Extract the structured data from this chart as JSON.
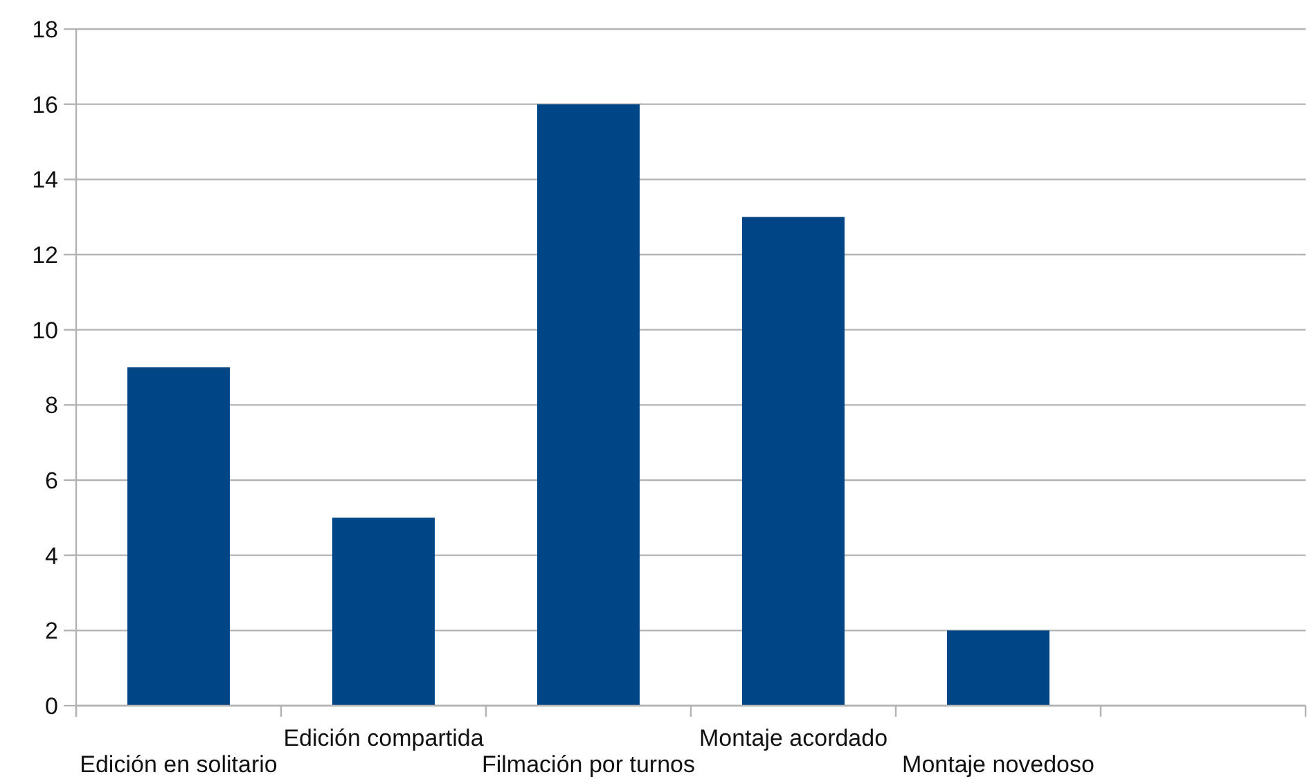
{
  "chart_data": {
    "type": "bar",
    "categories": [
      "Edición en solitario",
      "Edición compartida",
      "Filmación por turnos",
      "Montaje acordado",
      "Montaje novedoso",
      null
    ],
    "values": [
      9,
      5,
      16,
      13,
      2,
      null
    ],
    "color": "#004586",
    "ylim": [
      0,
      18
    ],
    "yticks": [
      0,
      2,
      4,
      6,
      8,
      10,
      12,
      14,
      16,
      18
    ],
    "grid": "y"
  }
}
